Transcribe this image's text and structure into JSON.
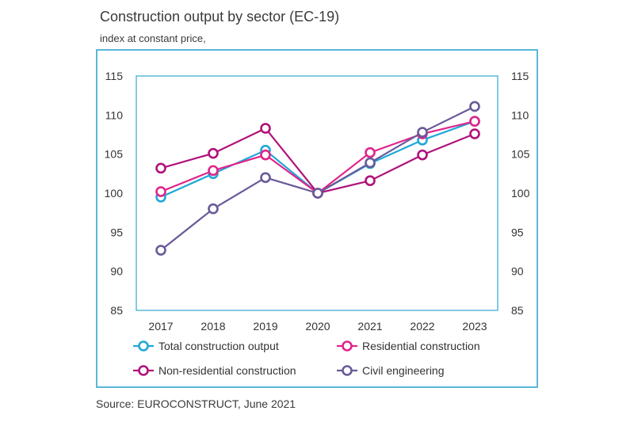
{
  "title": "Construction output by sector (EC-19)",
  "subtitle": "index at constant price,",
  "source": "Source: EUROCONSTRUCT, June 2021",
  "chart_data": {
    "type": "line",
    "x": [
      "2017",
      "2018",
      "2019",
      "2020",
      "2021",
      "2022",
      "2023"
    ],
    "ylim": [
      85,
      115
    ],
    "yticks": [
      "115",
      "110",
      "105",
      "100",
      "95",
      "90",
      "85"
    ],
    "grid": false,
    "legend_position": "bottom",
    "series": [
      {
        "name": "Total construction output",
        "color": "#1fa8d8",
        "values": [
          99.5,
          102.5,
          105.5,
          100,
          103.8,
          106.8,
          109.2
        ]
      },
      {
        "name": "Residential construction",
        "color": "#e0248a",
        "values": [
          100.2,
          102.9,
          104.9,
          100,
          105.2,
          107.6,
          109.2
        ]
      },
      {
        "name": "Non-residential construction",
        "color": "#b0127a",
        "values": [
          103.2,
          105.1,
          108.3,
          100,
          101.6,
          104.9,
          107.6
        ]
      },
      {
        "name": "Civil engineering",
        "color": "#6a5a98",
        "values": [
          92.7,
          98,
          102,
          100,
          103.9,
          107.8,
          111.1
        ]
      }
    ]
  }
}
